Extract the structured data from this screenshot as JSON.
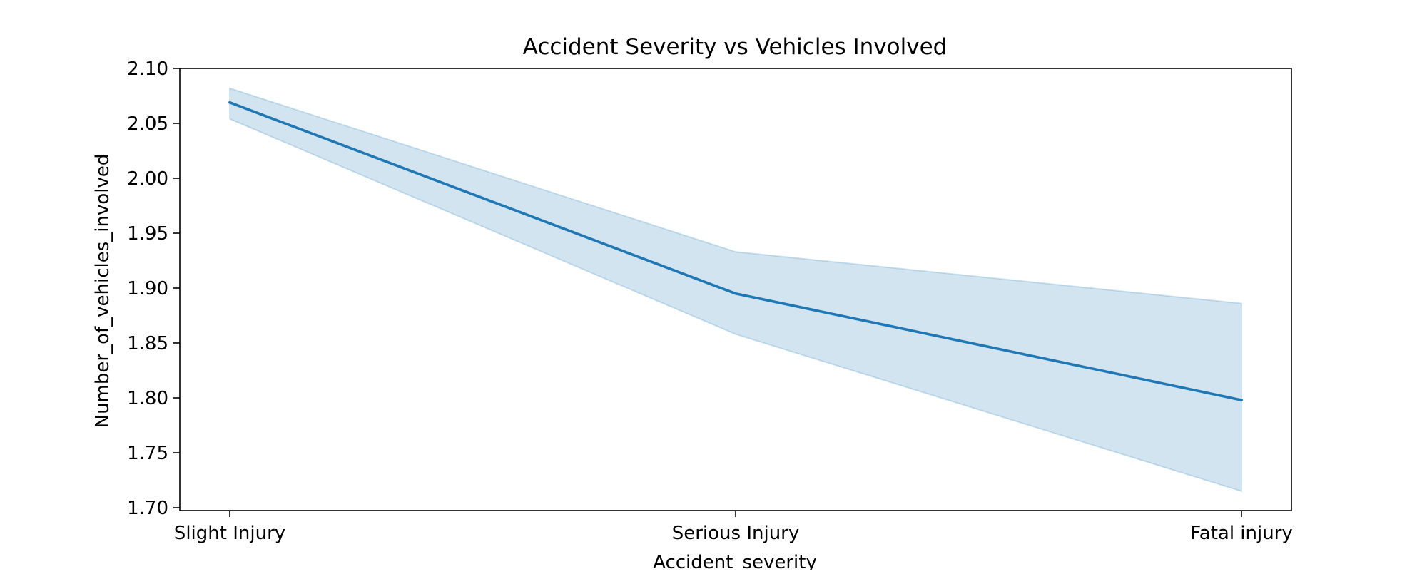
{
  "chart_data": {
    "type": "line",
    "title": "Accident Severity vs Vehicles Involved",
    "xlabel": "Accident_severity",
    "ylabel": "Number_of_vehicles_involved",
    "categories": [
      "Slight Injury",
      "Serious Injury",
      "Fatal injury"
    ],
    "series": [
      {
        "values": [
          2.069,
          1.895,
          1.798
        ],
        "ci_lower": [
          2.054,
          1.858,
          1.715
        ],
        "ci_upper": [
          2.082,
          1.933,
          1.886
        ],
        "color": "#1f77b4"
      }
    ],
    "ylim": [
      1.7,
      2.1
    ],
    "yticks": [
      "1.70",
      "1.75",
      "1.80",
      "1.85",
      "1.90",
      "1.95",
      "2.00",
      "2.05",
      "2.10"
    ],
    "grid": false,
    "legend": "none"
  }
}
